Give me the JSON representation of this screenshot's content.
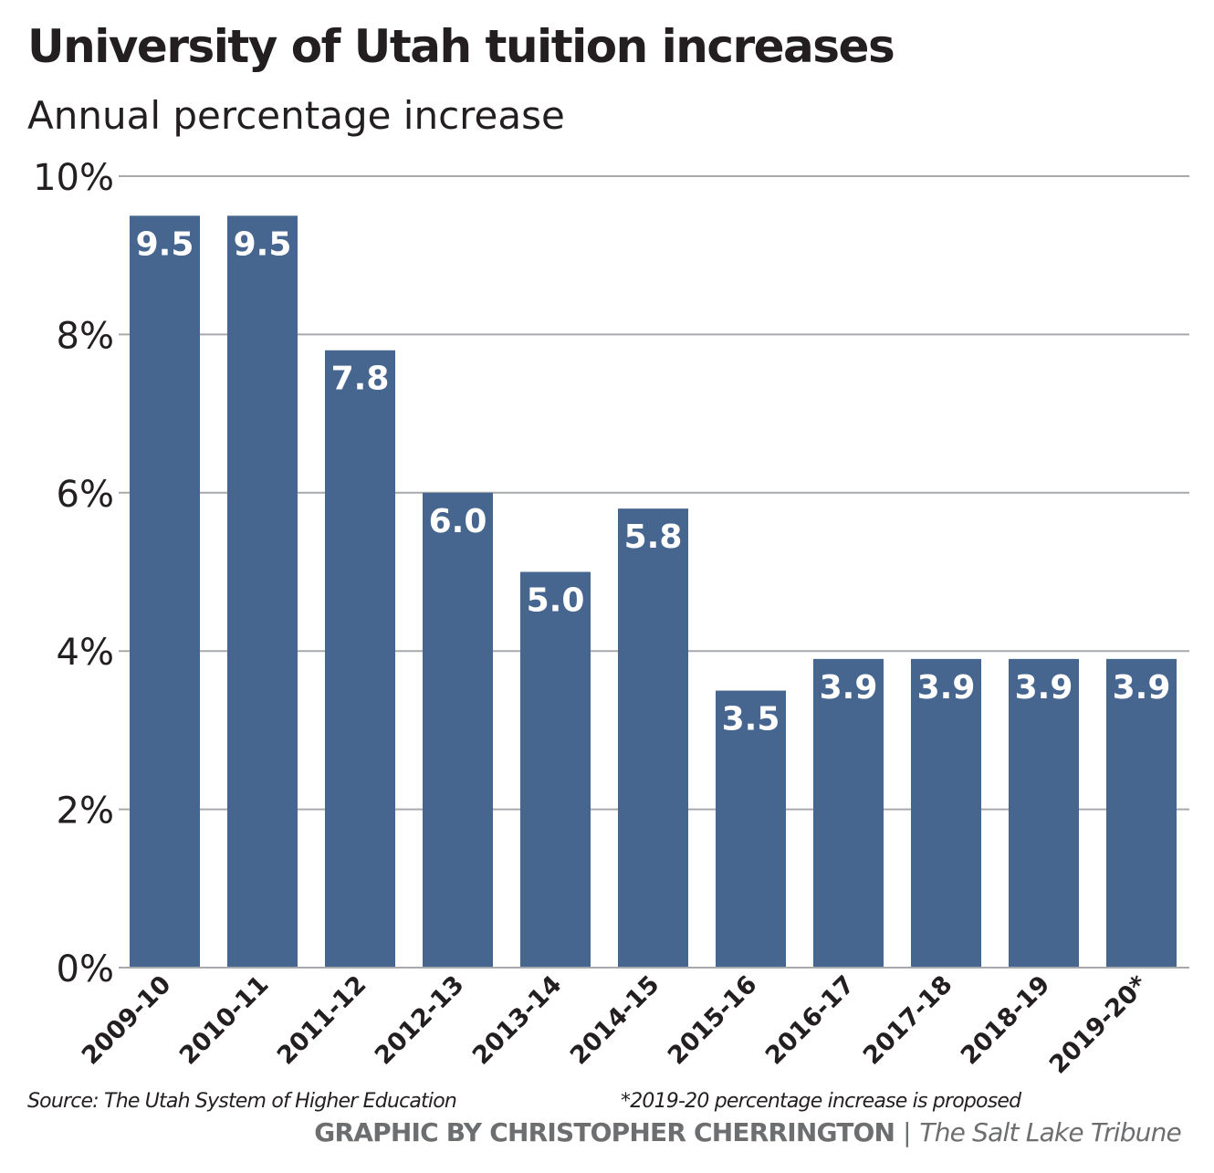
{
  "chart_data": {
    "type": "bar",
    "title": "University of Utah tuition increases",
    "subtitle": "Annual percentage increase",
    "categories": [
      "2009-10",
      "2010-11",
      "2011-12",
      "2012-13",
      "2013-14",
      "2014-15",
      "2015-16",
      "2016-17",
      "2017-18",
      "2018-19",
      "2019-20*"
    ],
    "values": [
      9.5,
      9.5,
      7.8,
      6.0,
      5.0,
      5.8,
      3.5,
      3.9,
      3.9,
      3.9,
      3.9
    ],
    "data_labels": [
      "9.5",
      "9.5",
      "7.8",
      "6.0",
      "5.0",
      "5.8",
      "3.5",
      "3.9",
      "3.9",
      "3.9",
      "3.9"
    ],
    "ylim": [
      0,
      10
    ],
    "yticks": [
      0,
      2,
      4,
      6,
      8,
      10
    ],
    "ytick_labels": [
      "0%",
      "2%",
      "4%",
      "6%",
      "8%",
      "10%"
    ],
    "grid": true,
    "bar_color": "#46668f",
    "grid_color": "#a7a9ac"
  },
  "footer": {
    "source": "Source: The Utah System of Higher Education",
    "note": "*2019-20 percentage increase is proposed",
    "credit": "GRAPHIC BY CHRISTOPHER CHERRINGTON",
    "separator": "|",
    "publication": "The Salt Lake Tribune"
  }
}
